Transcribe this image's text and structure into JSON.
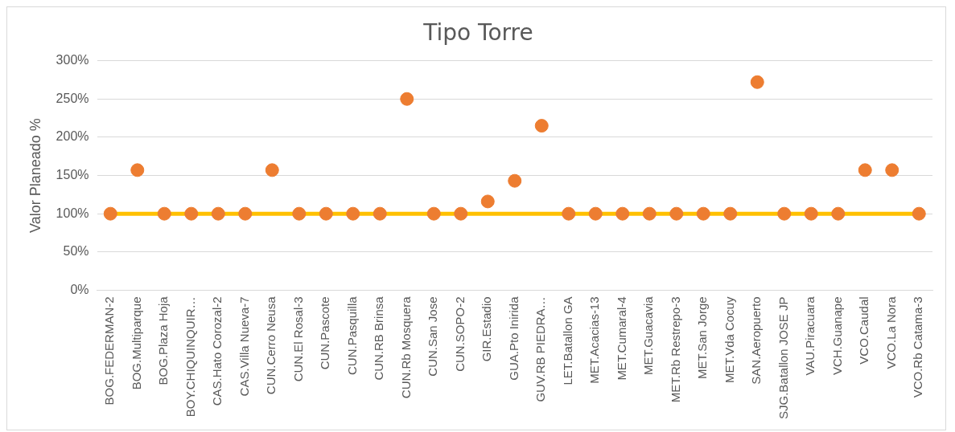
{
  "chart_data": {
    "type": "scatter",
    "title": "Tipo Torre",
    "ylabel": "Valor Planeado %",
    "categories": [
      "BOG.FEDERMAN-2",
      "BOG.Multiparque",
      "BOG.Plaza Hoja",
      "BOY.CHIQUINQUIR…",
      "CAS.Hato Corozal-2",
      "CAS.Villa Nueva-7",
      "CUN.Cerro Neusa",
      "CUN.El Rosal-3",
      "CUN.Pascote",
      "CUN.Pasquilla",
      "CUN.RB Brinsa",
      "CUN.Rb Mosquera",
      "CUN.San Jose",
      "CUN.SOPO-2",
      "GIR.Estadio",
      "GUA.Pto Inirida",
      "GUV.RB PIEDRA…",
      "LET.Batallon GA",
      "MET.Acacias-13",
      "MET.Cumaral-4",
      "MET.Guacavia",
      "MET.Rb Restrepo-3",
      "MET.San Jorge",
      "MET.Vda Cocuy",
      "SAN.Aeropuerto",
      "SJG.Batallon JOSE JP",
      "VAU.Piracuara",
      "VCH.Guanape",
      "VCO.Caudal",
      "VCO.La Nora",
      "VCO.Rb Catama-3"
    ],
    "series": [
      {
        "type": "line",
        "color": "#ffc000",
        "marker": "none",
        "values": [
          100,
          100,
          100,
          100,
          100,
          100,
          100,
          100,
          100,
          100,
          100,
          100,
          100,
          100,
          100,
          100,
          100,
          100,
          100,
          100,
          100,
          100,
          100,
          100,
          100,
          100,
          100,
          100,
          100,
          100,
          100
        ]
      },
      {
        "color": "#ed7d31",
        "values": [
          100,
          157,
          100,
          100,
          100,
          100,
          157,
          100,
          100,
          100,
          100,
          250,
          100,
          100,
          116,
          143,
          215,
          100,
          100,
          100,
          100,
          100,
          100,
          100,
          272,
          100,
          100,
          100,
          157,
          157,
          100
        ]
      }
    ],
    "marker": "circle",
    "ylim": [
      0,
      300
    ],
    "yticks": [
      {
        "value": 0,
        "label": "0%"
      },
      {
        "value": 50,
        "label": "50%"
      },
      {
        "value": 100,
        "label": "100%"
      },
      {
        "value": 150,
        "label": "150%"
      },
      {
        "value": 200,
        "label": "200%"
      },
      {
        "value": 250,
        "label": "250%"
      },
      {
        "value": 300,
        "label": "300%"
      }
    ],
    "grid": "y"
  }
}
